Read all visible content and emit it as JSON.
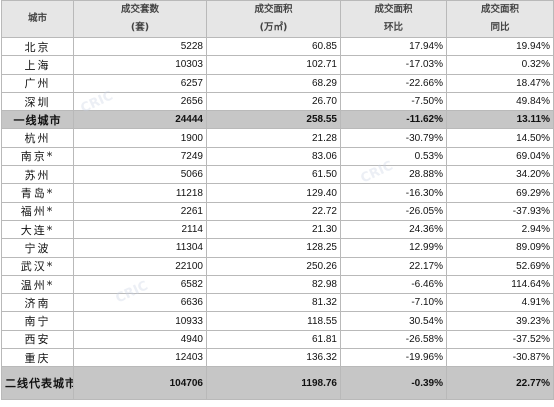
{
  "header": {
    "city": "城市",
    "units_line1": "成交套数",
    "units_line2": "(套)",
    "area_line1": "成交面积",
    "area_line2": "(万㎡)",
    "mom_line1": "成交面积",
    "mom_line2": "环比",
    "yoy_line1": "成交面积",
    "yoy_line2": "同比"
  },
  "rows": [
    {
      "city": "北京",
      "units": "5228",
      "area": "60.85",
      "mom": "17.94%",
      "yoy": "19.94%",
      "summary": false
    },
    {
      "city": "上海",
      "units": "10303",
      "area": "102.71",
      "mom": "-17.03%",
      "yoy": "0.32%",
      "summary": false
    },
    {
      "city": "广州",
      "units": "6257",
      "area": "68.29",
      "mom": "-22.66%",
      "yoy": "18.47%",
      "summary": false
    },
    {
      "city": "深圳",
      "units": "2656",
      "area": "26.70",
      "mom": "-7.50%",
      "yoy": "49.84%",
      "summary": false
    },
    {
      "city": "一线城市",
      "units": "24444",
      "area": "258.55",
      "mom": "-11.62%",
      "yoy": "13.11%",
      "summary": true
    },
    {
      "city": "杭州",
      "units": "1900",
      "area": "21.28",
      "mom": "-30.79%",
      "yoy": "14.50%",
      "summary": false
    },
    {
      "city": "南京*",
      "units": "7249",
      "area": "83.06",
      "mom": "0.53%",
      "yoy": "69.04%",
      "summary": false
    },
    {
      "city": "苏州",
      "units": "5066",
      "area": "61.50",
      "mom": "28.88%",
      "yoy": "34.20%",
      "summary": false
    },
    {
      "city": "青岛*",
      "units": "11218",
      "area": "129.40",
      "mom": "-16.30%",
      "yoy": "69.29%",
      "summary": false
    },
    {
      "city": "福州*",
      "units": "2261",
      "area": "22.72",
      "mom": "-26.05%",
      "yoy": "-37.93%",
      "summary": false
    },
    {
      "city": "大连*",
      "units": "2114",
      "area": "21.30",
      "mom": "24.36%",
      "yoy": "2.94%",
      "summary": false
    },
    {
      "city": "宁波",
      "units": "11304",
      "area": "128.25",
      "mom": "12.99%",
      "yoy": "89.09%",
      "summary": false
    },
    {
      "city": "武汉*",
      "units": "22100",
      "area": "250.26",
      "mom": "22.17%",
      "yoy": "52.69%",
      "summary": false
    },
    {
      "city": "温州*",
      "units": "6582",
      "area": "82.98",
      "mom": "-6.46%",
      "yoy": "114.64%",
      "summary": false
    },
    {
      "city": "济南",
      "units": "6636",
      "area": "81.32",
      "mom": "-7.10%",
      "yoy": "4.91%",
      "summary": false
    },
    {
      "city": "南宁",
      "units": "10933",
      "area": "118.55",
      "mom": "30.54%",
      "yoy": "39.23%",
      "summary": false
    },
    {
      "city": "西安",
      "units": "4940",
      "area": "61.81",
      "mom": "-26.58%",
      "yoy": "-37.52%",
      "summary": false
    },
    {
      "city": "重庆",
      "units": "12403",
      "area": "136.32",
      "mom": "-19.96%",
      "yoy": "-30.87%",
      "summary": false
    },
    {
      "city": "二线代表城市",
      "units": "104706",
      "area": "1198.76",
      "mom": "-0.39%",
      "yoy": "22.77%",
      "summary": true
    }
  ],
  "watermark_text": "CRIC"
}
